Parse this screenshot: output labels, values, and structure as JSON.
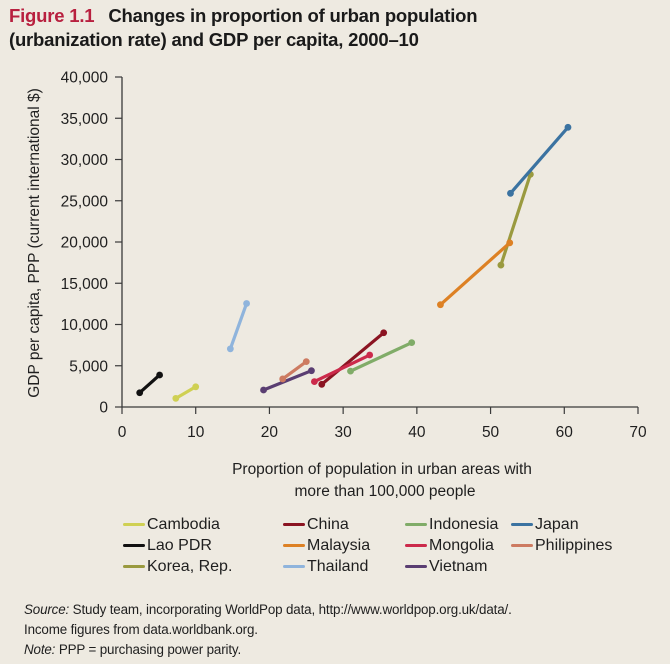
{
  "figure": {
    "number": "Figure 1.1",
    "title_line1": "Changes in proportion of urban population",
    "title_line2": "(urbanization rate) and GDP per capita, 2000–10"
  },
  "chart_data": {
    "type": "line",
    "title": "Changes in proportion of urban population (urbanization rate) and GDP per capita, 2000–10",
    "xlabel_line1": "Proportion of population in urban areas with",
    "xlabel_line2": "more than 100,000 people",
    "ylabel": "GDP per capita, PPP (current international $)",
    "xlim": [
      0,
      70
    ],
    "ylim": [
      0,
      40000
    ],
    "xticks": [
      0,
      10,
      20,
      30,
      40,
      50,
      60,
      70
    ],
    "xtick_labels": [
      "0",
      "10",
      "20",
      "30",
      "40",
      "50",
      "60",
      "70"
    ],
    "yticks": [
      0,
      5000,
      10000,
      15000,
      20000,
      25000,
      30000,
      35000,
      40000
    ],
    "ytick_labels": [
      "0",
      "5,000",
      "10,000",
      "15,000",
      "20,000",
      "25,000",
      "30,000",
      "35,000",
      "40,000"
    ],
    "grid": false,
    "legend_position": "bottom",
    "series": [
      {
        "name": "Cambodia",
        "color": "#cfd053",
        "points": [
          [
            7.3,
            1050
          ],
          [
            10.0,
            2450
          ]
        ]
      },
      {
        "name": "Lao PDR",
        "color": "#111111",
        "points": [
          [
            2.4,
            1730
          ],
          [
            5.1,
            3880
          ]
        ]
      },
      {
        "name": "Korea, Rep.",
        "color": "#9a9a3f",
        "points": [
          [
            51.4,
            17200
          ],
          [
            55.4,
            28200
          ]
        ]
      },
      {
        "name": "China",
        "color": "#8b1422",
        "points": [
          [
            27.1,
            2750
          ],
          [
            35.5,
            9000
          ]
        ]
      },
      {
        "name": "Malaysia",
        "color": "#dd8124",
        "points": [
          [
            43.2,
            12400
          ],
          [
            52.6,
            19900
          ]
        ]
      },
      {
        "name": "Thailand",
        "color": "#8fb4dc",
        "points": [
          [
            14.7,
            7050
          ],
          [
            16.9,
            12550
          ]
        ]
      },
      {
        "name": "Indonesia",
        "color": "#80ac68",
        "points": [
          [
            31.0,
            4350
          ],
          [
            39.3,
            7800
          ]
        ]
      },
      {
        "name": "Mongolia",
        "color": "#cc2a4b",
        "points": [
          [
            26.1,
            3080
          ],
          [
            33.6,
            6300
          ]
        ]
      },
      {
        "name": "Vietnam",
        "color": "#5a3e72",
        "points": [
          [
            19.2,
            2060
          ],
          [
            25.7,
            4400
          ]
        ]
      },
      {
        "name": "Japan",
        "color": "#3b73a1",
        "points": [
          [
            52.7,
            25900
          ],
          [
            60.5,
            33900
          ]
        ]
      },
      {
        "name": "Philippines",
        "color": "#cd7b61",
        "points": [
          [
            21.8,
            3400
          ],
          [
            25.0,
            5500
          ]
        ]
      }
    ]
  },
  "legend": {
    "order": [
      "Cambodia",
      "China",
      "Indonesia",
      "Japan",
      "Lao PDR",
      "Malaysia",
      "Mongolia",
      "Philippines",
      "Korea, Rep.",
      "Thailand",
      "Vietnam"
    ]
  },
  "source": {
    "source_label": "Source:",
    "source_text": " Study team, incorporating WorldPop data, http://www.worldpop.org.uk/data/.",
    "source_text2": "Income figures from data.worldbank.org.",
    "note_label": "Note:",
    "note_text": " PPP = purchasing power parity."
  }
}
